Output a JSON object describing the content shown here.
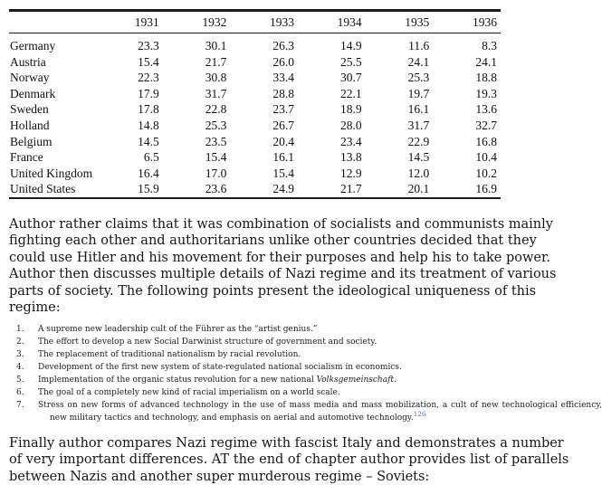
{
  "colors": {
    "footnote_link": "#4a6bc0",
    "text": "#1a1a1a",
    "background": "#ffffff"
  },
  "table": {
    "columns": [
      "1931",
      "1932",
      "1933",
      "1934",
      "1935",
      "1936"
    ],
    "rows": [
      {
        "country": "Germany",
        "values": [
          "23.3",
          "30.1",
          "26.3",
          "14.9",
          "11.6",
          "8.3"
        ]
      },
      {
        "country": "Austria",
        "values": [
          "15.4",
          "21.7",
          "26.0",
          "25.5",
          "24.1",
          "24.1"
        ]
      },
      {
        "country": "Norway",
        "values": [
          "22.3",
          "30.8",
          "33.4",
          "30.7",
          "25.3",
          "18.8"
        ]
      },
      {
        "country": "Denmark",
        "values": [
          "17.9",
          "31.7",
          "28.8",
          "22.1",
          "19.7",
          "19.3"
        ]
      },
      {
        "country": "Sweden",
        "values": [
          "17.8",
          "22.8",
          "23.7",
          "18.9",
          "16.1",
          "13.6"
        ]
      },
      {
        "country": "Holland",
        "values": [
          "14.8",
          "25.3",
          "26.7",
          "28.0",
          "31.7",
          "32.7"
        ]
      },
      {
        "country": "Belgium",
        "values": [
          "14.5",
          "23.5",
          "20.4",
          "23.4",
          "22.9",
          "16.8"
        ]
      },
      {
        "country": "France",
        "values": [
          "6.5",
          "15.4",
          "16.1",
          "13.8",
          "14.5",
          "10.4"
        ]
      },
      {
        "country": "United Kingdom",
        "values": [
          "16.4",
          "17.0",
          "15.4",
          "12.9",
          "12.0",
          "10.2"
        ]
      },
      {
        "country": "United States",
        "values": [
          "15.9",
          "23.6",
          "24.9",
          "21.7",
          "20.1",
          "16.9"
        ]
      }
    ]
  },
  "paragraph1": {
    "lines": [
      "Author rather claims that it was combination of socialists and communists mainly",
      "fighting each other and authoritarians unlike other countries decided that they",
      "could use Hitler and his movement for their purposes and help his to take power.",
      "Author then discusses multiple details of Nazi regime and its treatment of various",
      "parts of society. The following points present the ideological uniqueness of this",
      "regime:"
    ]
  },
  "list": {
    "items": [
      {
        "num": "1.",
        "text": "A supreme new leadership cult of the Führer as the “artist genius.”"
      },
      {
        "num": "2.",
        "text": "The effort to develop a new Social Darwinist structure of government and society."
      },
      {
        "num": "3.",
        "text": "The replacement of traditional nationalism by racial revolution."
      },
      {
        "num": "4.",
        "text": "Development of the first new system of state-regulated national socialism in economics."
      },
      {
        "num": "5.",
        "text": "Implementation of the organic status revolution for a new national ",
        "italic": "Volksgemeinschaft."
      },
      {
        "num": "6.",
        "text": "The goal of a completely new kind of racial imperialism on a world scale."
      },
      {
        "num": "7.",
        "line1": "Stress on new forms of advanced technology in the use of mass media and mass mobilization, a cult of new technological efficiency,",
        "line2": "new military tactics and technology, and emphasis on aerial and automotive technology.",
        "footnote": "126"
      }
    ]
  },
  "paragraph2": {
    "lines": [
      "Finally author compares Nazi regime with fascist Italy and demonstrates a number",
      "of very important differences. AT the end of chapter author provides list of parallels",
      "between Nazis and another super murderous regime – Soviets:"
    ]
  }
}
